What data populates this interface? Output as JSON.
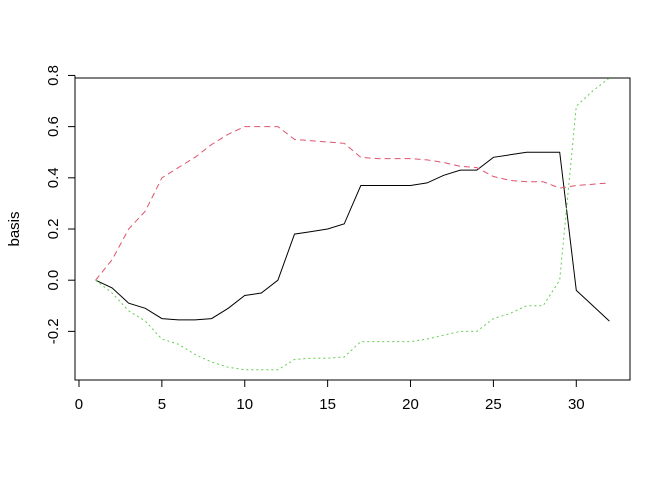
{
  "chart_data": {
    "type": "line",
    "title": "",
    "xlabel": "",
    "ylabel": "basis",
    "xlim": [
      -0.24,
      33.24
    ],
    "ylim": [
      -0.39,
      0.79
    ],
    "grid": false,
    "legend": "none",
    "x_ticks": [
      0,
      5,
      10,
      15,
      20,
      25,
      30
    ],
    "y_ticks": [
      -0.2,
      0.0,
      0.2,
      0.4,
      0.6,
      0.8
    ],
    "y_tick_labels": [
      "-0.2",
      "0.0",
      "0.2",
      "0.4",
      "0.6",
      "0.8"
    ],
    "x": [
      1,
      2,
      3,
      4,
      5,
      6,
      7,
      8,
      9,
      10,
      11,
      12,
      13,
      14,
      15,
      16,
      17,
      18,
      19,
      20,
      21,
      22,
      23,
      24,
      25,
      26,
      27,
      28,
      29,
      30,
      31,
      32
    ],
    "series": [
      {
        "color": "#000000",
        "dash": "solid",
        "values": [
          0.0,
          -0.03,
          -0.09,
          -0.11,
          -0.15,
          -0.155,
          -0.155,
          -0.15,
          -0.11,
          -0.06,
          -0.05,
          0.0,
          0.18,
          0.19,
          0.2,
          0.22,
          0.37,
          0.37,
          0.37,
          0.37,
          0.38,
          0.41,
          0.43,
          0.43,
          0.48,
          0.49,
          0.5,
          0.5,
          0.5,
          -0.04,
          -0.1,
          -0.16
        ]
      },
      {
        "color": "#DF536B",
        "dash": "dashed",
        "values": [
          0.0,
          0.08,
          0.2,
          0.27,
          0.4,
          0.44,
          0.48,
          0.53,
          0.57,
          0.6,
          0.6,
          0.6,
          0.55,
          0.545,
          0.54,
          0.535,
          0.48,
          0.475,
          0.475,
          0.475,
          0.47,
          0.46,
          0.445,
          0.44,
          0.405,
          0.39,
          0.385,
          0.385,
          0.36,
          0.37,
          0.375,
          0.38
        ]
      },
      {
        "color": "#61D04F",
        "dash": "dotted",
        "values": [
          0.0,
          -0.05,
          -0.12,
          -0.16,
          -0.23,
          -0.25,
          -0.29,
          -0.32,
          -0.34,
          -0.35,
          -0.35,
          -0.35,
          -0.31,
          -0.305,
          -0.305,
          -0.3,
          -0.24,
          -0.24,
          -0.24,
          -0.24,
          -0.23,
          -0.215,
          -0.2,
          -0.2,
          -0.15,
          -0.13,
          -0.1,
          -0.1,
          0.0,
          0.68,
          0.74,
          0.79
        ]
      }
    ]
  }
}
